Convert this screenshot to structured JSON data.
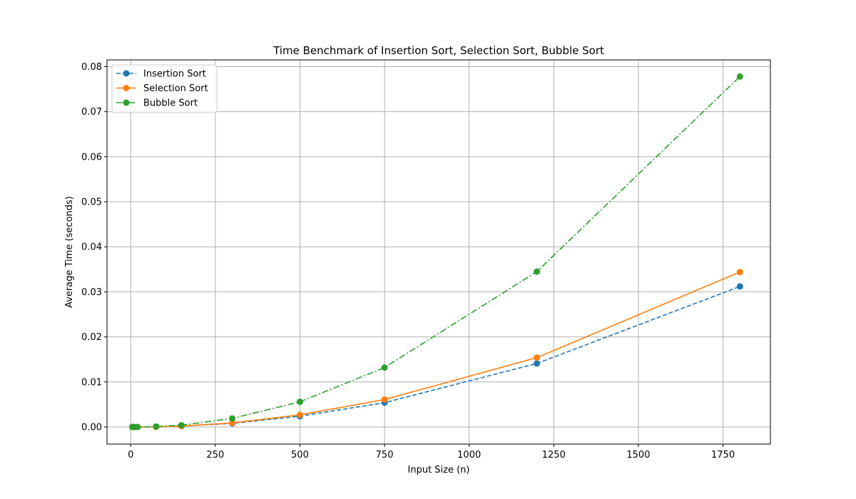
{
  "chart_data": {
    "type": "line",
    "title": "Time Benchmark of Insertion Sort, Selection Sort, Bubble Sort",
    "xlabel": "Input Size (n)",
    "ylabel": "Average Time (seconds)",
    "xlim": [
      -70,
      1890
    ],
    "ylim": [
      -0.0038,
      0.0815
    ],
    "xticks": [
      0,
      250,
      500,
      750,
      1000,
      1250,
      1500,
      1750
    ],
    "xtick_labels": [
      "0",
      "250",
      "500",
      "750",
      "1000",
      "1250",
      "1500",
      "1750"
    ],
    "yticks": [
      0.0,
      0.01,
      0.02,
      0.03,
      0.04,
      0.05,
      0.06,
      0.07,
      0.08
    ],
    "ytick_labels": [
      "0.00",
      "0.01",
      "0.02",
      "0.03",
      "0.04",
      "0.05",
      "0.06",
      "0.07",
      "0.08"
    ],
    "grid": true,
    "legend_position": "upper-left",
    "x": [
      5,
      10,
      20,
      75,
      150,
      300,
      500,
      750,
      1200,
      1800
    ],
    "series": [
      {
        "name": "Insertion Sort",
        "color": "#1f77b4",
        "linestyle": "dashed",
        "values": [
          0.0,
          0.0,
          0.0,
          3e-05,
          0.0002,
          0.0008,
          0.0024,
          0.0054,
          0.0141,
          0.0312
        ]
      },
      {
        "name": "Selection Sort",
        "color": "#ff7f0e",
        "linestyle": "solid",
        "values": [
          0.0,
          0.0,
          0.0,
          3e-05,
          0.0002,
          0.0009,
          0.0027,
          0.0061,
          0.0154,
          0.0344
        ]
      },
      {
        "name": "Bubble Sort",
        "color": "#2ca02c",
        "linestyle": "dashdot",
        "values": [
          0.0,
          0.0,
          0.0,
          0.0001,
          0.0004,
          0.0019,
          0.0056,
          0.0132,
          0.0345,
          0.0778
        ]
      }
    ]
  }
}
